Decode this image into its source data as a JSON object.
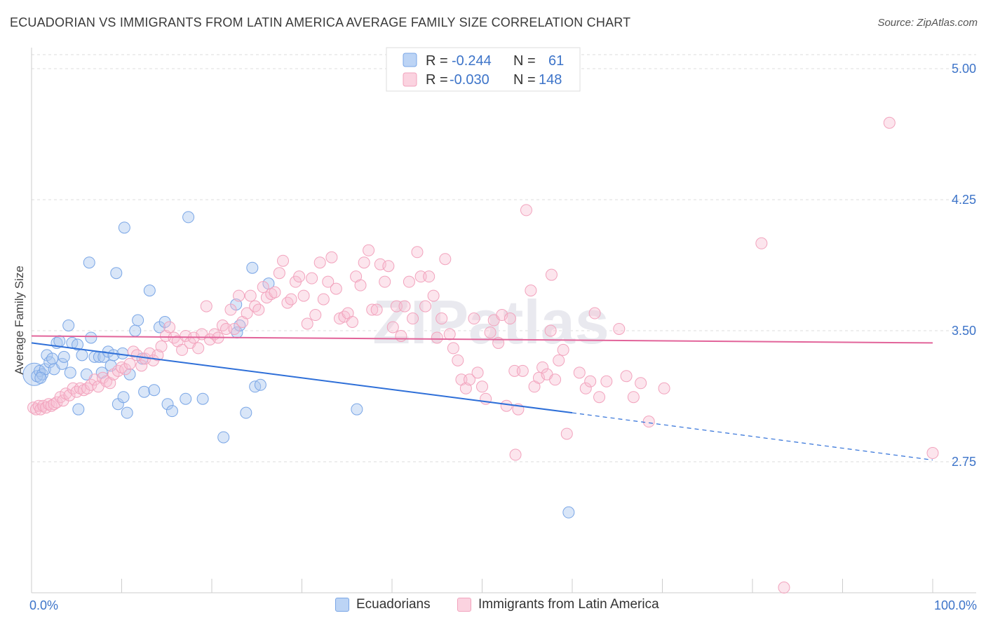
{
  "header": {
    "title": "ECUADORIAN VS IMMIGRANTS FROM LATIN AMERICA AVERAGE FAMILY SIZE CORRELATION CHART",
    "source": "Source: ZipAtlas.com"
  },
  "watermark": "ZIPatlas",
  "legend_top": {
    "rows": [
      {
        "r_label": "R =",
        "r_value": "-0.244",
        "n_label": "N =",
        "n_value": "61",
        "color": "#7aa6e6"
      },
      {
        "r_label": "R =",
        "r_value": "-0.030",
        "n_label": "N =",
        "n_value": "148",
        "color": "#f2a3bd"
      }
    ]
  },
  "legend_bottom": {
    "items": [
      {
        "label": "Ecuadorians",
        "color": "#7aa6e6"
      },
      {
        "label": "Immigrants from Latin America",
        "color": "#f2a3bd"
      }
    ]
  },
  "chart_data": {
    "type": "scatter",
    "title": "ECUADORIAN VS IMMIGRANTS FROM LATIN AMERICA AVERAGE FAMILY SIZE CORRELATION CHART",
    "xlabel": "",
    "ylabel": "Average Family Size",
    "xlim": [
      0,
      100
    ],
    "ylim": [
      2.0,
      5.08
    ],
    "x_tick_labels": [
      "0.0%",
      "100.0%"
    ],
    "y_ticks": [
      2.75,
      3.5,
      4.25,
      5.0
    ],
    "y_tick_labels": [
      "2.75",
      "3.50",
      "4.25",
      "5.00"
    ],
    "grid": true,
    "legend_position": "top-center",
    "series": [
      {
        "name": "Ecuadorians",
        "color": "#7aa6e6",
        "trend": {
          "x0": 0,
          "y0": 3.43,
          "x1": 60,
          "y1": 3.03,
          "dashed_to_x": 100,
          "dashed_to_y": 2.76
        },
        "points": [
          [
            0.3,
            3.25
          ],
          [
            0.6,
            3.24
          ],
          [
            0.9,
            3.27
          ],
          [
            1.2,
            3.25
          ],
          [
            1.5,
            3.28
          ],
          [
            1.7,
            3.36
          ],
          [
            2.0,
            3.32
          ],
          [
            2.3,
            3.34
          ],
          [
            2.5,
            3.28
          ],
          [
            2.8,
            3.43
          ],
          [
            3.1,
            3.44
          ],
          [
            3.4,
            3.31
          ],
          [
            3.6,
            3.35
          ],
          [
            4.1,
            3.53
          ],
          [
            4.3,
            3.26
          ],
          [
            4.5,
            3.43
          ],
          [
            5.1,
            3.42
          ],
          [
            5.2,
            3.05
          ],
          [
            5.6,
            3.36
          ],
          [
            6.1,
            3.25
          ],
          [
            6.4,
            3.89
          ],
          [
            6.6,
            3.46
          ],
          [
            7.0,
            3.35
          ],
          [
            7.5,
            3.35
          ],
          [
            7.8,
            3.26
          ],
          [
            8.0,
            3.35
          ],
          [
            8.5,
            3.38
          ],
          [
            8.8,
            3.3
          ],
          [
            9.1,
            3.36
          ],
          [
            9.4,
            3.83
          ],
          [
            9.6,
            3.08
          ],
          [
            10.1,
            3.37
          ],
          [
            10.2,
            3.12
          ],
          [
            10.3,
            4.09
          ],
          [
            10.6,
            3.03
          ],
          [
            10.9,
            3.25
          ],
          [
            11.5,
            3.5
          ],
          [
            11.8,
            3.56
          ],
          [
            12.3,
            3.34
          ],
          [
            12.5,
            3.15
          ],
          [
            13.1,
            3.73
          ],
          [
            13.6,
            3.16
          ],
          [
            14.2,
            3.52
          ],
          [
            14.8,
            3.55
          ],
          [
            15.1,
            3.08
          ],
          [
            15.6,
            3.04
          ],
          [
            17.4,
            4.15
          ],
          [
            17.1,
            3.11
          ],
          [
            19.0,
            3.11
          ],
          [
            21.3,
            2.89
          ],
          [
            22.7,
            3.65
          ],
          [
            22.8,
            3.49
          ],
          [
            23.1,
            3.53
          ],
          [
            23.8,
            3.03
          ],
          [
            24.5,
            3.86
          ],
          [
            24.8,
            3.18
          ],
          [
            25.4,
            3.19
          ],
          [
            26.3,
            3.77
          ],
          [
            36.1,
            3.05
          ],
          [
            59.6,
            2.46
          ],
          [
            1.0,
            3.23
          ]
        ]
      },
      {
        "name": "Immigrants from Latin America",
        "color": "#f2a3bd",
        "trend": {
          "x0": 0,
          "y0": 3.47,
          "x1": 100,
          "y1": 3.43
        },
        "points": [
          [
            0.2,
            3.06
          ],
          [
            0.5,
            3.05
          ],
          [
            0.8,
            3.07
          ],
          [
            1.0,
            3.05
          ],
          [
            1.3,
            3.07
          ],
          [
            1.6,
            3.06
          ],
          [
            1.9,
            3.08
          ],
          [
            2.2,
            3.07
          ],
          [
            2.5,
            3.08
          ],
          [
            2.8,
            3.09
          ],
          [
            3.2,
            3.12
          ],
          [
            3.5,
            3.1
          ],
          [
            3.8,
            3.14
          ],
          [
            4.2,
            3.13
          ],
          [
            4.6,
            3.17
          ],
          [
            5.0,
            3.15
          ],
          [
            5.4,
            3.17
          ],
          [
            5.8,
            3.16
          ],
          [
            6.2,
            3.17
          ],
          [
            6.6,
            3.19
          ],
          [
            7.0,
            3.22
          ],
          [
            7.4,
            3.18
          ],
          [
            7.9,
            3.23
          ],
          [
            8.3,
            3.21
          ],
          [
            8.7,
            3.2
          ],
          [
            9.1,
            3.25
          ],
          [
            9.6,
            3.27
          ],
          [
            10.0,
            3.29
          ],
          [
            10.4,
            3.28
          ],
          [
            10.9,
            3.31
          ],
          [
            11.3,
            3.38
          ],
          [
            11.7,
            3.36
          ],
          [
            12.2,
            3.3
          ],
          [
            12.6,
            3.34
          ],
          [
            13.1,
            3.37
          ],
          [
            13.5,
            3.33
          ],
          [
            14.0,
            3.36
          ],
          [
            14.4,
            3.41
          ],
          [
            14.9,
            3.47
          ],
          [
            15.3,
            3.52
          ],
          [
            15.8,
            3.46
          ],
          [
            16.2,
            3.44
          ],
          [
            16.7,
            3.39
          ],
          [
            17.1,
            3.47
          ],
          [
            17.6,
            3.43
          ],
          [
            18.0,
            3.46
          ],
          [
            18.5,
            3.4
          ],
          [
            18.9,
            3.48
          ],
          [
            19.4,
            3.64
          ],
          [
            19.8,
            3.45
          ],
          [
            20.3,
            3.48
          ],
          [
            20.7,
            3.46
          ],
          [
            21.2,
            3.53
          ],
          [
            21.6,
            3.51
          ],
          [
            22.1,
            3.62
          ],
          [
            22.5,
            3.51
          ],
          [
            23.0,
            3.7
          ],
          [
            23.4,
            3.55
          ],
          [
            23.9,
            3.6
          ],
          [
            24.3,
            3.7
          ],
          [
            24.8,
            3.64
          ],
          [
            25.2,
            3.62
          ],
          [
            25.7,
            3.75
          ],
          [
            26.1,
            3.69
          ],
          [
            26.6,
            3.71
          ],
          [
            27.0,
            3.72
          ],
          [
            27.5,
            3.83
          ],
          [
            27.9,
            3.9
          ],
          [
            28.4,
            3.66
          ],
          [
            28.8,
            3.68
          ],
          [
            29.3,
            3.78
          ],
          [
            29.7,
            3.81
          ],
          [
            30.2,
            3.7
          ],
          [
            30.6,
            3.54
          ],
          [
            31.1,
            3.8
          ],
          [
            31.5,
            3.59
          ],
          [
            32.0,
            3.89
          ],
          [
            32.4,
            3.68
          ],
          [
            32.9,
            3.78
          ],
          [
            33.3,
            3.92
          ],
          [
            33.8,
            3.74
          ],
          [
            34.2,
            3.57
          ],
          [
            34.7,
            3.58
          ],
          [
            35.1,
            3.6
          ],
          [
            35.6,
            3.55
          ],
          [
            36.0,
            3.81
          ],
          [
            36.5,
            3.76
          ],
          [
            36.9,
            3.89
          ],
          [
            37.4,
            3.96
          ],
          [
            37.8,
            3.62
          ],
          [
            38.3,
            3.62
          ],
          [
            38.7,
            3.88
          ],
          [
            39.2,
            3.78
          ],
          [
            39.6,
            3.87
          ],
          [
            40.1,
            3.52
          ],
          [
            40.5,
            3.64
          ],
          [
            41.0,
            3.47
          ],
          [
            41.4,
            3.64
          ],
          [
            41.9,
            3.78
          ],
          [
            42.3,
            3.57
          ],
          [
            42.8,
            3.95
          ],
          [
            43.2,
            3.81
          ],
          [
            43.7,
            3.64
          ],
          [
            44.1,
            3.81
          ],
          [
            44.6,
            3.7
          ],
          [
            45.0,
            3.46
          ],
          [
            45.5,
            3.57
          ],
          [
            45.9,
            3.91
          ],
          [
            46.4,
            3.48
          ],
          [
            46.8,
            3.4
          ],
          [
            47.3,
            3.33
          ],
          [
            47.7,
            3.22
          ],
          [
            48.2,
            3.17
          ],
          [
            48.6,
            3.22
          ],
          [
            49.1,
            3.57
          ],
          [
            49.5,
            3.26
          ],
          [
            50.0,
            3.18
          ],
          [
            50.4,
            3.11
          ],
          [
            50.9,
            3.49
          ],
          [
            51.3,
            3.56
          ],
          [
            51.8,
            3.43
          ],
          [
            52.2,
            3.59
          ],
          [
            52.7,
            3.07
          ],
          [
            53.1,
            3.57
          ],
          [
            53.6,
            3.27
          ],
          [
            54.0,
            3.05
          ],
          [
            54.5,
            3.27
          ],
          [
            54.9,
            4.19
          ],
          [
            55.4,
            3.73
          ],
          [
            55.8,
            3.18
          ],
          [
            56.3,
            3.23
          ],
          [
            56.7,
            3.29
          ],
          [
            57.2,
            3.25
          ],
          [
            57.6,
            3.5
          ],
          [
            58.1,
            3.22
          ],
          [
            58.5,
            3.33
          ],
          [
            59.0,
            3.39
          ],
          [
            59.4,
            2.91
          ],
          [
            60.8,
            3.26
          ],
          [
            61.5,
            3.17
          ],
          [
            62.0,
            3.21
          ],
          [
            62.5,
            3.6
          ],
          [
            63.0,
            3.12
          ],
          [
            63.8,
            3.21
          ],
          [
            65.2,
            3.51
          ],
          [
            66.0,
            3.24
          ],
          [
            66.8,
            3.12
          ],
          [
            67.6,
            3.2
          ],
          [
            68.5,
            2.98
          ],
          [
            70.2,
            3.17
          ],
          [
            81.0,
            4.0
          ],
          [
            95.2,
            4.69
          ],
          [
            57.7,
            3.82
          ],
          [
            100.0,
            2.8
          ],
          [
            83.5,
            2.03
          ],
          [
            53.7,
            2.79
          ]
        ]
      }
    ]
  }
}
